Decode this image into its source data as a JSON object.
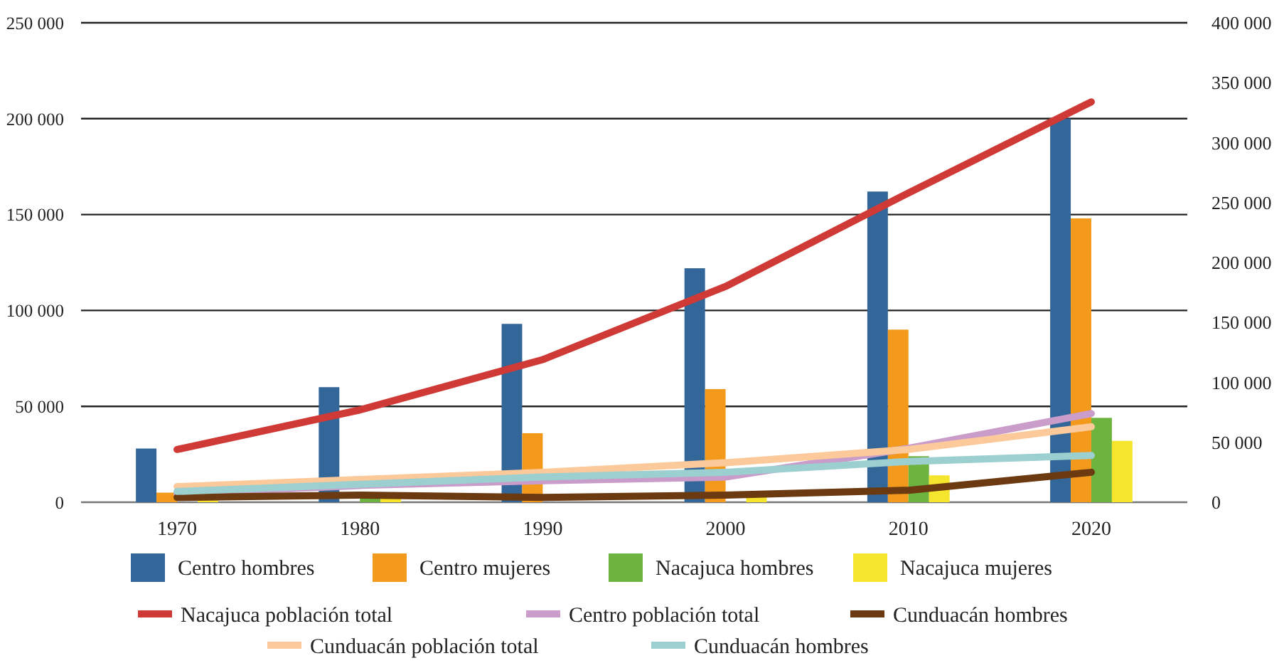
{
  "chart_data": {
    "type": "bar",
    "categories": [
      "1970",
      "1980",
      "1990",
      "2000",
      "2010",
      "2020"
    ],
    "series": [
      {
        "name": "Centro hombres",
        "color": "#336699",
        "values": [
          28000,
          60000,
          93000,
          122000,
          162000,
          200000
        ]
      },
      {
        "name": "Centro mujeres",
        "color": "#f39a1c",
        "values": [
          5000,
          null,
          36000,
          59000,
          90000,
          148000
        ]
      },
      {
        "name": "Nacajuca hombres",
        "color": "#6db33f",
        "values": [
          null,
          3000,
          null,
          null,
          24000,
          44000
        ]
      },
      {
        "name": "Nacajuca mujeres",
        "color": "#f5e52c",
        "values": [
          1000,
          3000,
          null,
          4000,
          14000,
          32000
        ]
      },
      {
        "name": "Nacajuca población total",
        "type": "line",
        "axis": "y2",
        "color": "#d03a36",
        "values": [
          44000,
          77000,
          119000,
          180000,
          258000,
          334000
        ]
      },
      {
        "name": "Centro población total",
        "type": "line",
        "axis": "y2",
        "color": "#c99cca",
        "values": [
          7000,
          14000,
          18000,
          21000,
          45000,
          74000
        ]
      },
      {
        "name": "Cunduacán hombres",
        "type": "line",
        "axis": "y2",
        "color": "#6b3a10",
        "values": [
          4000,
          6000,
          4000,
          6000,
          10000,
          25000
        ]
      },
      {
        "name": "Cunduacán población total",
        "type": "line",
        "axis": "y2",
        "color": "#fbc99a",
        "values": [
          13000,
          19000,
          25000,
          33000,
          44000,
          63000
        ]
      },
      {
        "name": "Cunduacán hombres",
        "type": "line",
        "axis": "y2",
        "color": "#9ccfcf",
        "values": [
          9000,
          15000,
          21000,
          25000,
          34000,
          39000
        ]
      }
    ],
    "ylim": [
      0,
      250000
    ],
    "yticks": [
      {
        "value": 0,
        "label": "0"
      },
      {
        "value": 50000,
        "label": "50 000"
      },
      {
        "value": 100000,
        "label": "100 000"
      },
      {
        "value": 150000,
        "label": "150 000"
      },
      {
        "value": 200000,
        "label": "200 000"
      },
      {
        "value": 250000,
        "label": "250 000"
      }
    ],
    "y2lim": [
      0,
      400000
    ],
    "y2ticks": [
      {
        "value": 0,
        "label": "0"
      },
      {
        "value": 50000,
        "label": "50 000"
      },
      {
        "value": 100000,
        "label": "100 000"
      },
      {
        "value": 150000,
        "label": "150 000"
      },
      {
        "value": 200000,
        "label": "200 000"
      },
      {
        "value": 250000,
        "label": "250 000"
      },
      {
        "value": 300000,
        "label": "300 000"
      },
      {
        "value": 350000,
        "label": "350 000"
      },
      {
        "value": 400000,
        "label": "400 000"
      }
    ],
    "grid": "y",
    "legend": "bottom"
  }
}
